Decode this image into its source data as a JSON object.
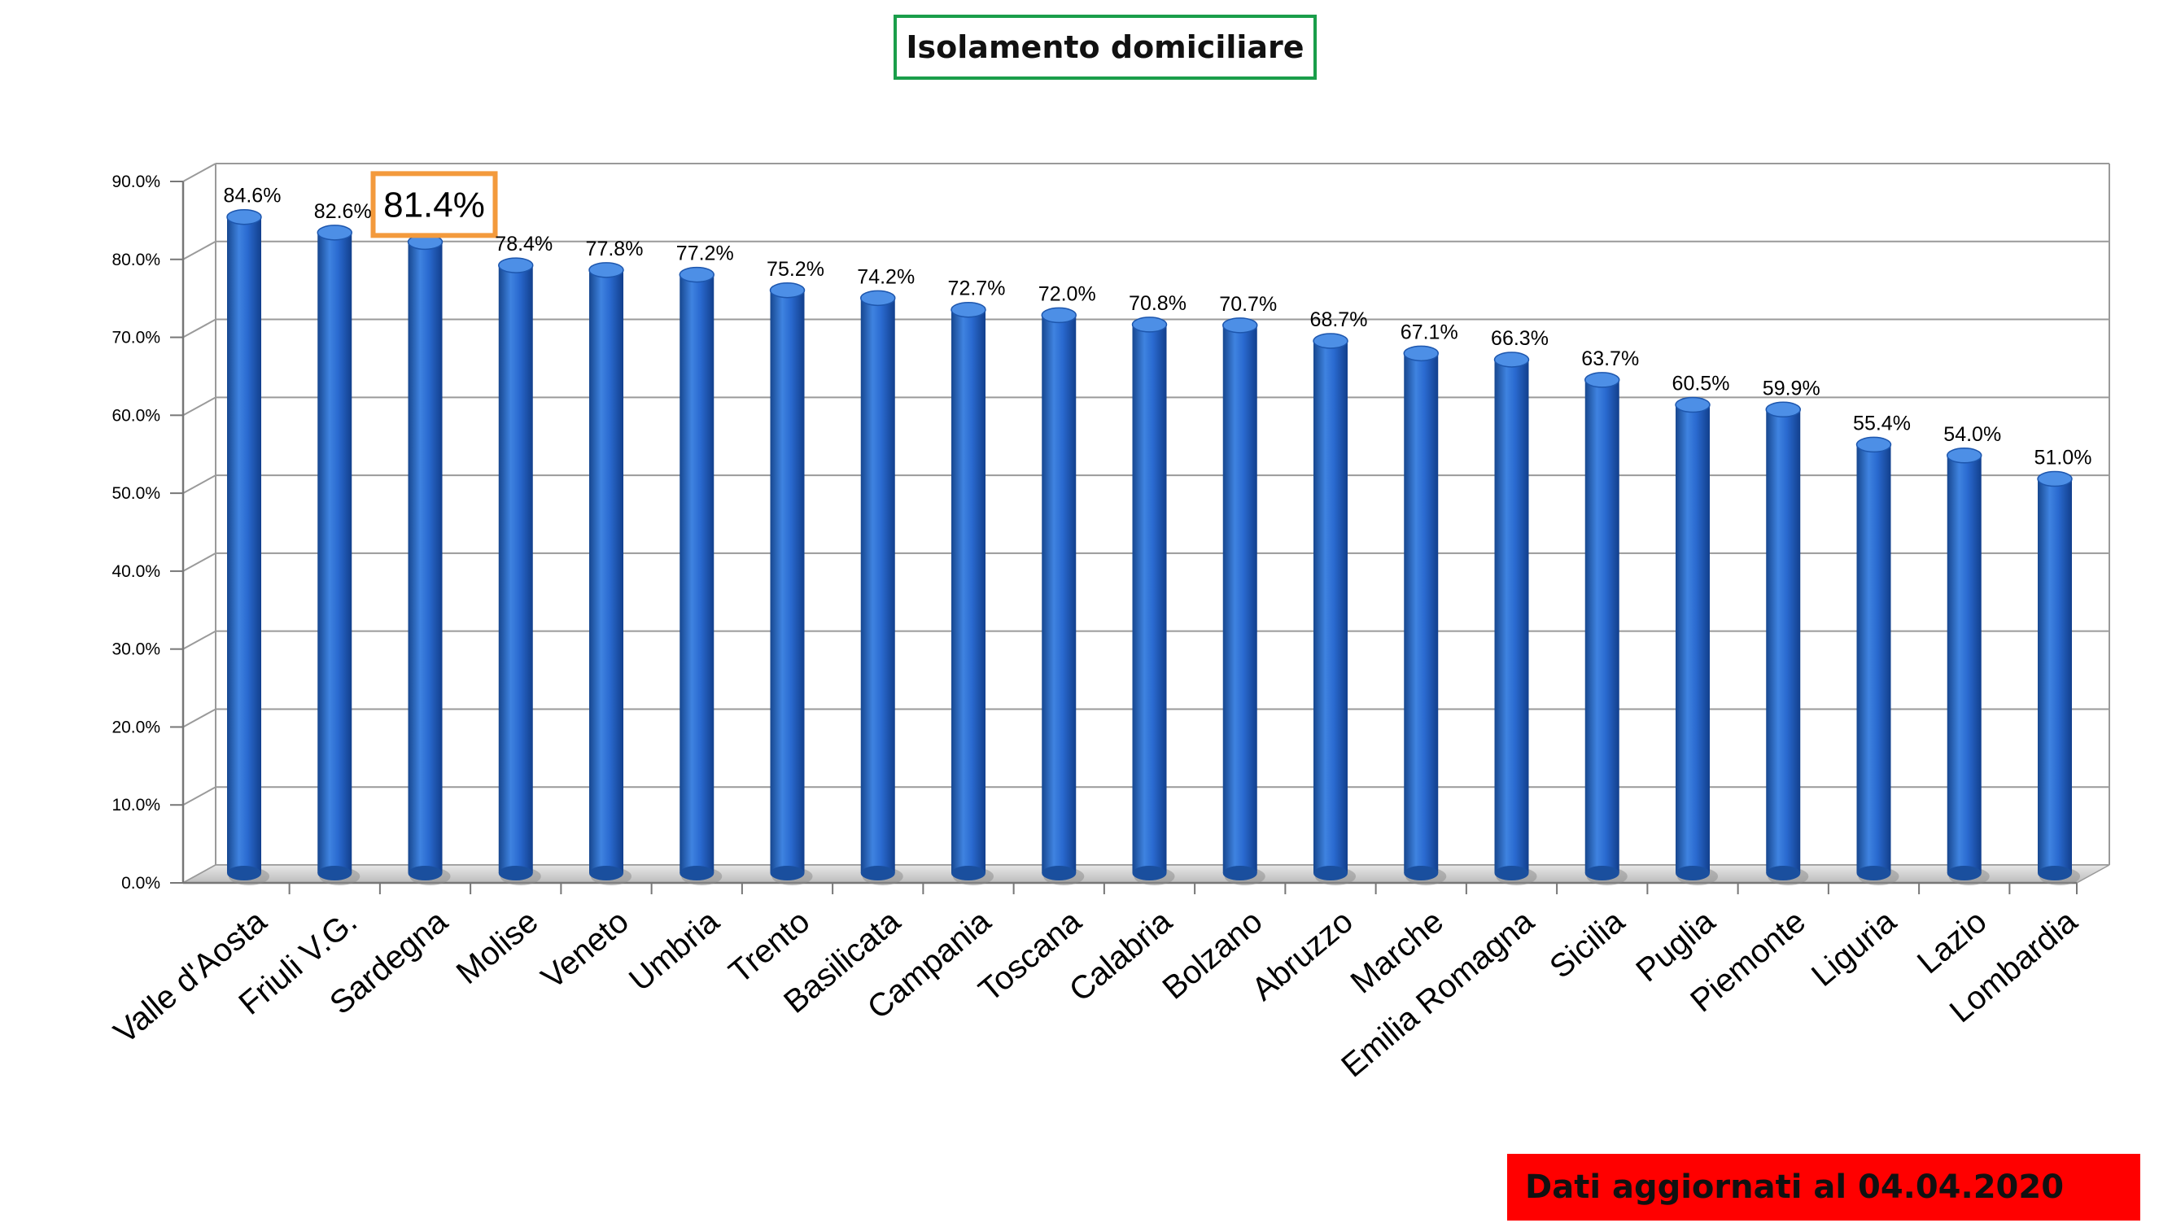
{
  "title": "Isolamento domiciliare",
  "footer": "Dati aggiornati al 04.04.2020",
  "colors": {
    "bar": "#2a6ad0",
    "bar_dark": "#123f8c",
    "grid": "#999999",
    "title_border": "#1a9e4a",
    "highlight_border": "#f39a3c",
    "footer_bg": "#ff0000"
  },
  "chart_data": {
    "type": "bar",
    "categories": [
      "Valle d'Aosta",
      "Friuli V.G.",
      "Sardegna",
      "Molise",
      "Veneto",
      "Umbria",
      "Trento",
      "Basilicata",
      "Campania",
      "Toscana",
      "Calabria",
      "Bolzano",
      "Abruzzo",
      "Marche",
      "Emilia Romagna",
      "Sicilia",
      "Puglia",
      "Piemonte",
      "Liguria",
      "Lazio",
      "Lombardia"
    ],
    "values": [
      84.6,
      82.6,
      81.4,
      78.4,
      77.8,
      77.2,
      75.2,
      74.2,
      72.7,
      72.0,
      70.8,
      70.7,
      68.7,
      67.1,
      66.3,
      63.7,
      60.5,
      59.9,
      55.4,
      54.0,
      51.0
    ],
    "data_labels": [
      "84.6%",
      "82.6%",
      "81.4%",
      "78.4%",
      "77.8%",
      "77.2%",
      "75.2%",
      "74.2%",
      "72.7%",
      "72.0%",
      "70.8%",
      "70.7%",
      "68.7%",
      "67.1%",
      "66.3%",
      "63.7%",
      "60.5%",
      "59.9%",
      "55.4%",
      "54.0%",
      "51.0%"
    ],
    "highlighted_category": "Sardegna",
    "yticks": [
      "0.0%",
      "10.0%",
      "20.0%",
      "30.0%",
      "40.0%",
      "50.0%",
      "60.0%",
      "70.0%",
      "80.0%",
      "90.0%"
    ],
    "ylim": [
      0,
      90
    ],
    "grid": true,
    "legend": "none"
  }
}
